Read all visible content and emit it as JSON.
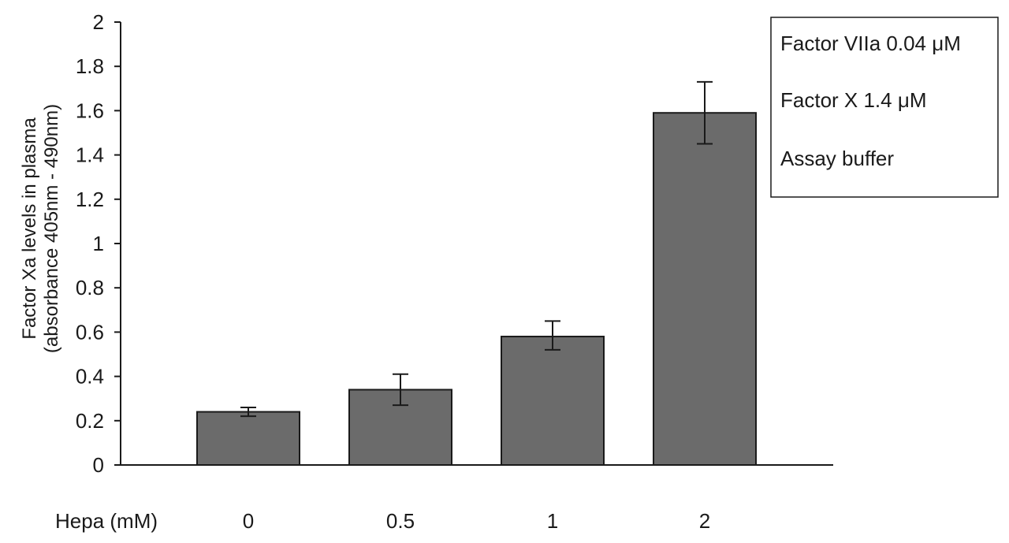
{
  "chart_data": {
    "type": "bar",
    "title": "",
    "ylabel_line1": "Factor Xa levels in plasma",
    "ylabel_line2": "(absorbance 405nm - 490nm)",
    "x_row_label": "Hepa (mM)",
    "categories": [
      "0",
      "0.5",
      "1",
      "2"
    ],
    "values": [
      0.24,
      0.34,
      0.58,
      1.59
    ],
    "error_bars": [
      {
        "low": 0.22,
        "high": 0.26
      },
      {
        "low": 0.27,
        "high": 0.41
      },
      {
        "low": 0.52,
        "high": 0.65
      },
      {
        "low": 1.45,
        "high": 1.73
      }
    ],
    "ylim": [
      0,
      2
    ],
    "y_ticks": [
      "0",
      "0.2",
      "0.4",
      "0.6",
      "0.8",
      "1",
      "1.2",
      "1.4",
      "1.6",
      "1.8",
      "2"
    ],
    "grid": false,
    "bar_color": "#6b6b6b",
    "legend_placement": "top-right",
    "legend_items": [
      "Factor VIIa 0.04 μM",
      "Factor X 1.4 μM",
      "Assay buffer"
    ]
  }
}
